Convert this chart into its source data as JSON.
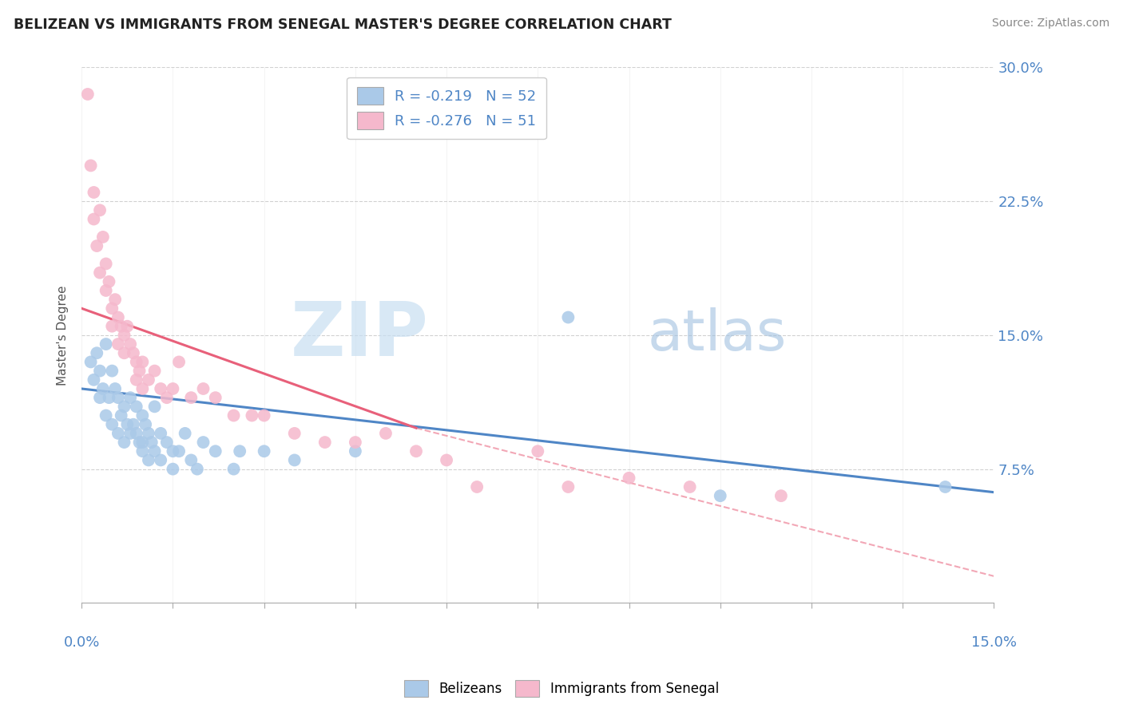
{
  "title": "BELIZEAN VS IMMIGRANTS FROM SENEGAL MASTER'S DEGREE CORRELATION CHART",
  "source": "Source: ZipAtlas.com",
  "ylabel": "Master's Degree",
  "xlim": [
    0.0,
    15.0
  ],
  "ylim": [
    0.0,
    30.0
  ],
  "right_yticks": [
    7.5,
    15.0,
    22.5,
    30.0
  ],
  "legend_blue_r": "R = -0.219",
  "legend_blue_n": "N = 52",
  "legend_pink_r": "R = -0.276",
  "legend_pink_n": "N = 51",
  "blue_color": "#aac9e8",
  "pink_color": "#f5b8cc",
  "blue_line_color": "#4f86c6",
  "pink_line_color": "#e8607a",
  "blue_line_x0": 0.0,
  "blue_line_y0": 12.0,
  "blue_line_x1": 15.0,
  "blue_line_y1": 6.2,
  "pink_line_x0": 0.0,
  "pink_line_y0": 16.5,
  "pink_line_x1": 5.5,
  "pink_line_y1": 9.8,
  "pink_dash_x0": 5.5,
  "pink_dash_y0": 9.8,
  "pink_dash_x1": 15.0,
  "pink_dash_y1": 1.5,
  "blue_scatter_x": [
    0.15,
    0.2,
    0.25,
    0.3,
    0.3,
    0.35,
    0.4,
    0.4,
    0.45,
    0.5,
    0.5,
    0.55,
    0.6,
    0.6,
    0.65,
    0.7,
    0.7,
    0.75,
    0.8,
    0.8,
    0.85,
    0.9,
    0.9,
    0.95,
    1.0,
    1.0,
    1.0,
    1.05,
    1.1,
    1.1,
    1.15,
    1.2,
    1.2,
    1.3,
    1.3,
    1.4,
    1.5,
    1.5,
    1.6,
    1.7,
    1.8,
    1.9,
    2.0,
    2.2,
    2.5,
    2.6,
    3.0,
    3.5,
    4.5,
    8.0,
    10.5,
    14.2
  ],
  "blue_scatter_y": [
    13.5,
    12.5,
    14.0,
    11.5,
    13.0,
    12.0,
    14.5,
    10.5,
    11.5,
    13.0,
    10.0,
    12.0,
    11.5,
    9.5,
    10.5,
    11.0,
    9.0,
    10.0,
    11.5,
    9.5,
    10.0,
    9.5,
    11.0,
    9.0,
    10.5,
    9.0,
    8.5,
    10.0,
    9.5,
    8.0,
    9.0,
    11.0,
    8.5,
    9.5,
    8.0,
    9.0,
    8.5,
    7.5,
    8.5,
    9.5,
    8.0,
    7.5,
    9.0,
    8.5,
    7.5,
    8.5,
    8.5,
    8.0,
    8.5,
    16.0,
    6.0,
    6.5
  ],
  "pink_scatter_x": [
    0.1,
    0.15,
    0.2,
    0.2,
    0.25,
    0.3,
    0.3,
    0.35,
    0.4,
    0.4,
    0.45,
    0.5,
    0.5,
    0.55,
    0.6,
    0.6,
    0.65,
    0.7,
    0.7,
    0.75,
    0.8,
    0.85,
    0.9,
    0.9,
    0.95,
    1.0,
    1.0,
    1.1,
    1.2,
    1.3,
    1.4,
    1.5,
    1.6,
    1.8,
    2.0,
    2.2,
    2.5,
    2.8,
    3.0,
    3.5,
    4.0,
    4.5,
    5.0,
    5.5,
    6.0,
    6.5,
    7.5,
    8.0,
    9.0,
    10.0,
    11.5
  ],
  "pink_scatter_y": [
    28.5,
    24.5,
    23.0,
    21.5,
    20.0,
    22.0,
    18.5,
    20.5,
    19.0,
    17.5,
    18.0,
    16.5,
    15.5,
    17.0,
    16.0,
    14.5,
    15.5,
    15.0,
    14.0,
    15.5,
    14.5,
    14.0,
    13.5,
    12.5,
    13.0,
    13.5,
    12.0,
    12.5,
    13.0,
    12.0,
    11.5,
    12.0,
    13.5,
    11.5,
    12.0,
    11.5,
    10.5,
    10.5,
    10.5,
    9.5,
    9.0,
    9.0,
    9.5,
    8.5,
    8.0,
    6.5,
    8.5,
    6.5,
    7.0,
    6.5,
    6.0
  ]
}
